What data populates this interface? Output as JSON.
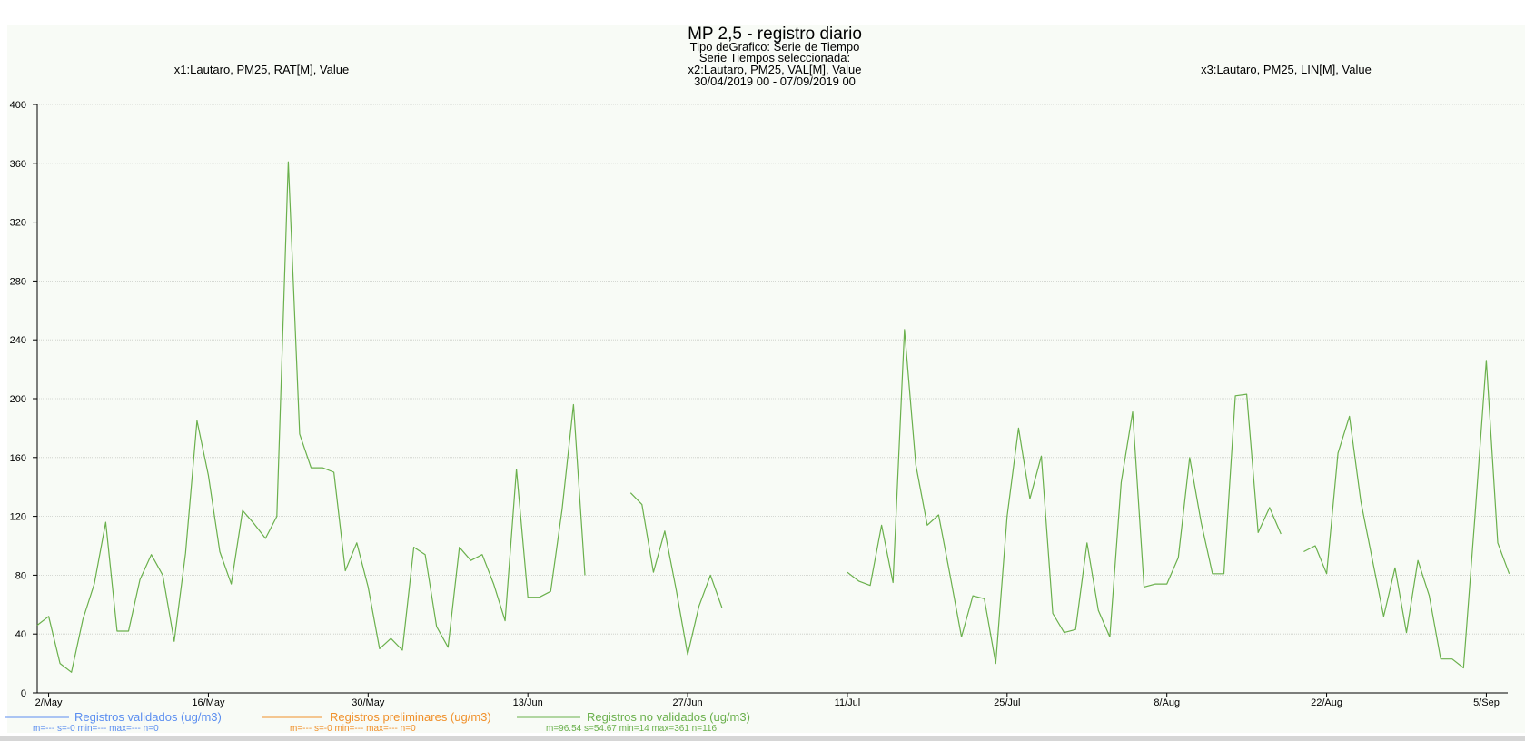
{
  "header": {
    "title": "MP 2,5 - registro diario",
    "line1": "Tipo deGrafico: Serie de Tiempo",
    "line2": "Serie Tiempos seleccionada:",
    "line3": "x2:Lautaro, PM25, VAL[M], Value",
    "line4": "30/04/2019 00 - 07/09/2019 00",
    "left_label": "x1:Lautaro, PM25, RAT[M], Value",
    "right_label": "x3:Lautaro, PM25, LIN[M], Value"
  },
  "legend": [
    {
      "name": "Registros validados (ug/m3)",
      "stats": "m=--- s=-0 min=--- max=--- n=0",
      "color": "#5b8ef0"
    },
    {
      "name": "Registros preliminares (ug/m3)",
      "stats": "m=--- s=-0 min=--- max=--- n=0",
      "color": "#f0902a"
    },
    {
      "name": "Registros no validados (ug/m3)",
      "stats": "m=96.54 s=54.67 min=14 max=361 n=116",
      "color": "#6ab04c"
    }
  ],
  "chart_data": {
    "type": "line",
    "ylim": [
      0,
      400
    ],
    "yticks": [
      0,
      40,
      80,
      120,
      160,
      200,
      240,
      280,
      320,
      360,
      400
    ],
    "x_range": [
      "2019-05-01",
      "2019-09-06"
    ],
    "x_ticks": [
      {
        "date": "2019-05-02",
        "label": "2/May"
      },
      {
        "date": "2019-05-16",
        "label": "16/May"
      },
      {
        "date": "2019-05-30",
        "label": "30/May"
      },
      {
        "date": "2019-06-13",
        "label": "13/Jun"
      },
      {
        "date": "2019-06-27",
        "label": "27/Jun"
      },
      {
        "date": "2019-07-11",
        "label": "11/Jul"
      },
      {
        "date": "2019-07-25",
        "label": "25/Jul"
      },
      {
        "date": "2019-08-08",
        "label": "8/Aug"
      },
      {
        "date": "2019-08-22",
        "label": "22/Aug"
      },
      {
        "date": "2019-09-05",
        "label": "5/Sep"
      }
    ],
    "grid": true,
    "background": "#f8fbf6",
    "series": [
      {
        "name": "Registros validados (ug/m3)",
        "color": "#5b8ef0",
        "points": []
      },
      {
        "name": "Registros preliminares (ug/m3)",
        "color": "#f0902a",
        "points": []
      },
      {
        "name": "Registros no validados (ug/m3)",
        "color": "#6ab04c",
        "points": [
          [
            "2019-05-01",
            46
          ],
          [
            "2019-05-02",
            52
          ],
          [
            "2019-05-03",
            20
          ],
          [
            "2019-05-04",
            14
          ],
          [
            "2019-05-05",
            50
          ],
          [
            "2019-05-06",
            74
          ],
          [
            "2019-05-07",
            116
          ],
          [
            "2019-05-08",
            42
          ],
          [
            "2019-05-09",
            42
          ],
          [
            "2019-05-10",
            77
          ],
          [
            "2019-05-11",
            94
          ],
          [
            "2019-05-12",
            80
          ],
          [
            "2019-05-13",
            35
          ],
          [
            "2019-05-14",
            95
          ],
          [
            "2019-05-15",
            185
          ],
          [
            "2019-05-16",
            148
          ],
          [
            "2019-05-17",
            96
          ],
          [
            "2019-05-18",
            74
          ],
          [
            "2019-05-19",
            124
          ],
          [
            "2019-05-20",
            115
          ],
          [
            "2019-05-21",
            105
          ],
          [
            "2019-05-22",
            120
          ],
          [
            "2019-05-23",
            361
          ],
          [
            "2019-05-24",
            176
          ],
          [
            "2019-05-25",
            153
          ],
          [
            "2019-05-26",
            153
          ],
          [
            "2019-05-27",
            150
          ],
          [
            "2019-05-28",
            83
          ],
          [
            "2019-05-29",
            102
          ],
          [
            "2019-05-30",
            72
          ],
          [
            "2019-05-31",
            30
          ],
          [
            "2019-06-01",
            37
          ],
          [
            "2019-06-02",
            29
          ],
          [
            "2019-06-03",
            99
          ],
          [
            "2019-06-04",
            94
          ],
          [
            "2019-06-05",
            45
          ],
          [
            "2019-06-06",
            31
          ],
          [
            "2019-06-07",
            99
          ],
          [
            "2019-06-08",
            90
          ],
          [
            "2019-06-09",
            94
          ],
          [
            "2019-06-10",
            74
          ],
          [
            "2019-06-11",
            49
          ],
          [
            "2019-06-12",
            152
          ],
          [
            "2019-06-13",
            65
          ],
          [
            "2019-06-14",
            65
          ],
          [
            "2019-06-15",
            69
          ],
          [
            "2019-06-16",
            125
          ],
          [
            "2019-06-17",
            196
          ],
          [
            "2019-06-18",
            80
          ],
          null,
          [
            "2019-06-22",
            136
          ],
          [
            "2019-06-23",
            128
          ],
          [
            "2019-06-24",
            82
          ],
          [
            "2019-06-25",
            110
          ],
          [
            "2019-06-26",
            70
          ],
          [
            "2019-06-27",
            26
          ],
          [
            "2019-06-28",
            59
          ],
          [
            "2019-06-29",
            80
          ],
          [
            "2019-06-30",
            58
          ],
          null,
          [
            "2019-07-11",
            82
          ],
          [
            "2019-07-12",
            76
          ],
          [
            "2019-07-13",
            73
          ],
          [
            "2019-07-14",
            114
          ],
          [
            "2019-07-15",
            75
          ],
          [
            "2019-07-16",
            247
          ],
          [
            "2019-07-17",
            155
          ],
          [
            "2019-07-18",
            114
          ],
          [
            "2019-07-19",
            121
          ],
          [
            "2019-07-20",
            80
          ],
          [
            "2019-07-21",
            38
          ],
          [
            "2019-07-22",
            66
          ],
          [
            "2019-07-23",
            64
          ],
          [
            "2019-07-24",
            20
          ],
          [
            "2019-07-25",
            120
          ],
          [
            "2019-07-26",
            180
          ],
          [
            "2019-07-27",
            132
          ],
          [
            "2019-07-28",
            161
          ],
          [
            "2019-07-29",
            54
          ],
          [
            "2019-07-30",
            41
          ],
          [
            "2019-07-31",
            43
          ],
          [
            "2019-08-01",
            102
          ],
          [
            "2019-08-02",
            56
          ],
          [
            "2019-08-03",
            38
          ],
          [
            "2019-08-04",
            143
          ],
          [
            "2019-08-05",
            191
          ],
          [
            "2019-08-06",
            72
          ],
          [
            "2019-08-07",
            74
          ],
          [
            "2019-08-08",
            74
          ],
          [
            "2019-08-09",
            92
          ],
          [
            "2019-08-10",
            160
          ],
          [
            "2019-08-11",
            116
          ],
          [
            "2019-08-12",
            81
          ],
          [
            "2019-08-13",
            81
          ],
          [
            "2019-08-14",
            202
          ],
          [
            "2019-08-15",
            203
          ],
          [
            "2019-08-16",
            109
          ],
          [
            "2019-08-17",
            126
          ],
          [
            "2019-08-18",
            108
          ],
          null,
          [
            "2019-08-20",
            96
          ],
          [
            "2019-08-21",
            100
          ],
          [
            "2019-08-22",
            81
          ],
          [
            "2019-08-23",
            163
          ],
          [
            "2019-08-24",
            188
          ],
          [
            "2019-08-25",
            130
          ],
          [
            "2019-08-26",
            91
          ],
          [
            "2019-08-27",
            52
          ],
          [
            "2019-08-28",
            85
          ],
          [
            "2019-08-29",
            41
          ],
          [
            "2019-08-30",
            90
          ],
          [
            "2019-08-31",
            66
          ],
          [
            "2019-09-01",
            23
          ],
          [
            "2019-09-02",
            23
          ],
          [
            "2019-09-03",
            17
          ],
          [
            "2019-09-04",
            120
          ],
          [
            "2019-09-05",
            226
          ],
          [
            "2019-09-06",
            102
          ],
          [
            "2019-09-07",
            81
          ]
        ]
      }
    ]
  }
}
